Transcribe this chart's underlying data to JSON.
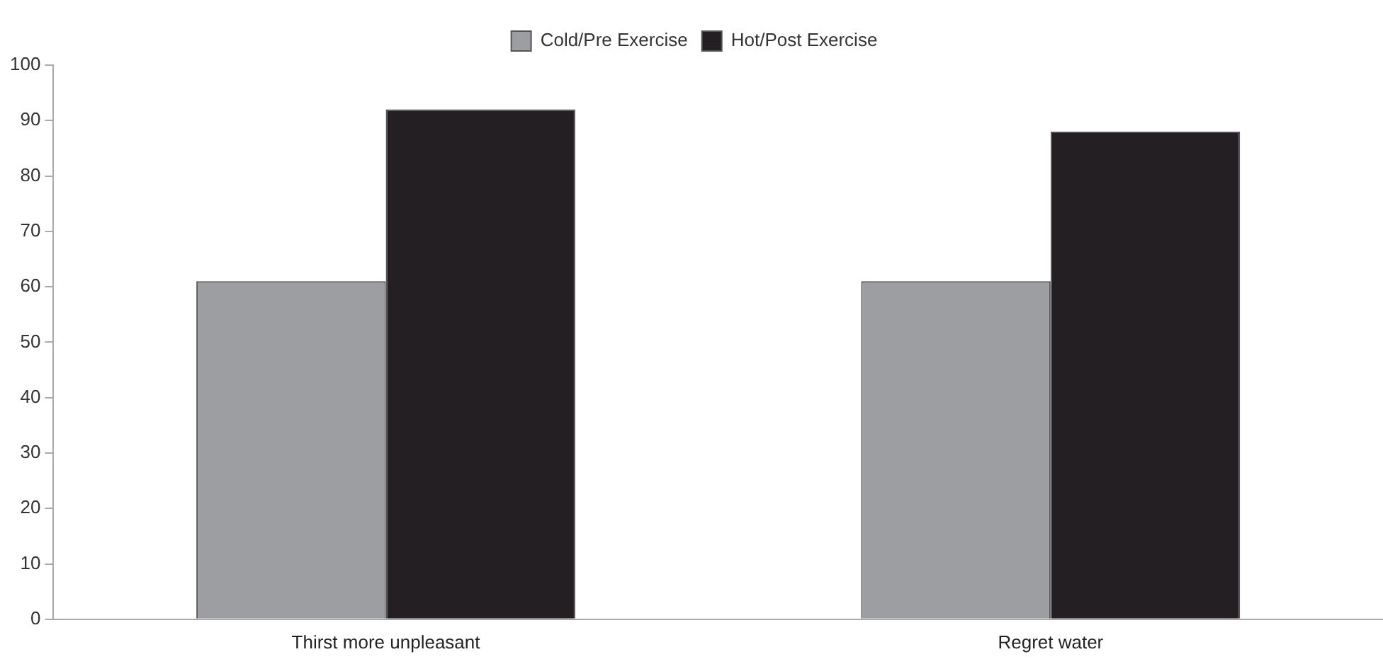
{
  "chart_data": {
    "type": "bar",
    "categories": [
      "Thirst more unpleasant",
      "Regret water"
    ],
    "series": [
      {
        "name": "Cold/Pre Exercise",
        "color": "#9d9ea2",
        "values": [
          61,
          61
        ]
      },
      {
        "name": "Hot/Post Exercise",
        "color": "#231f22",
        "values": [
          92,
          88
        ]
      }
    ],
    "ylim": [
      0,
      100
    ],
    "yticks": [
      0,
      10,
      20,
      30,
      40,
      50,
      60,
      70,
      80,
      90,
      100
    ],
    "grid": false,
    "legend": "top"
  }
}
